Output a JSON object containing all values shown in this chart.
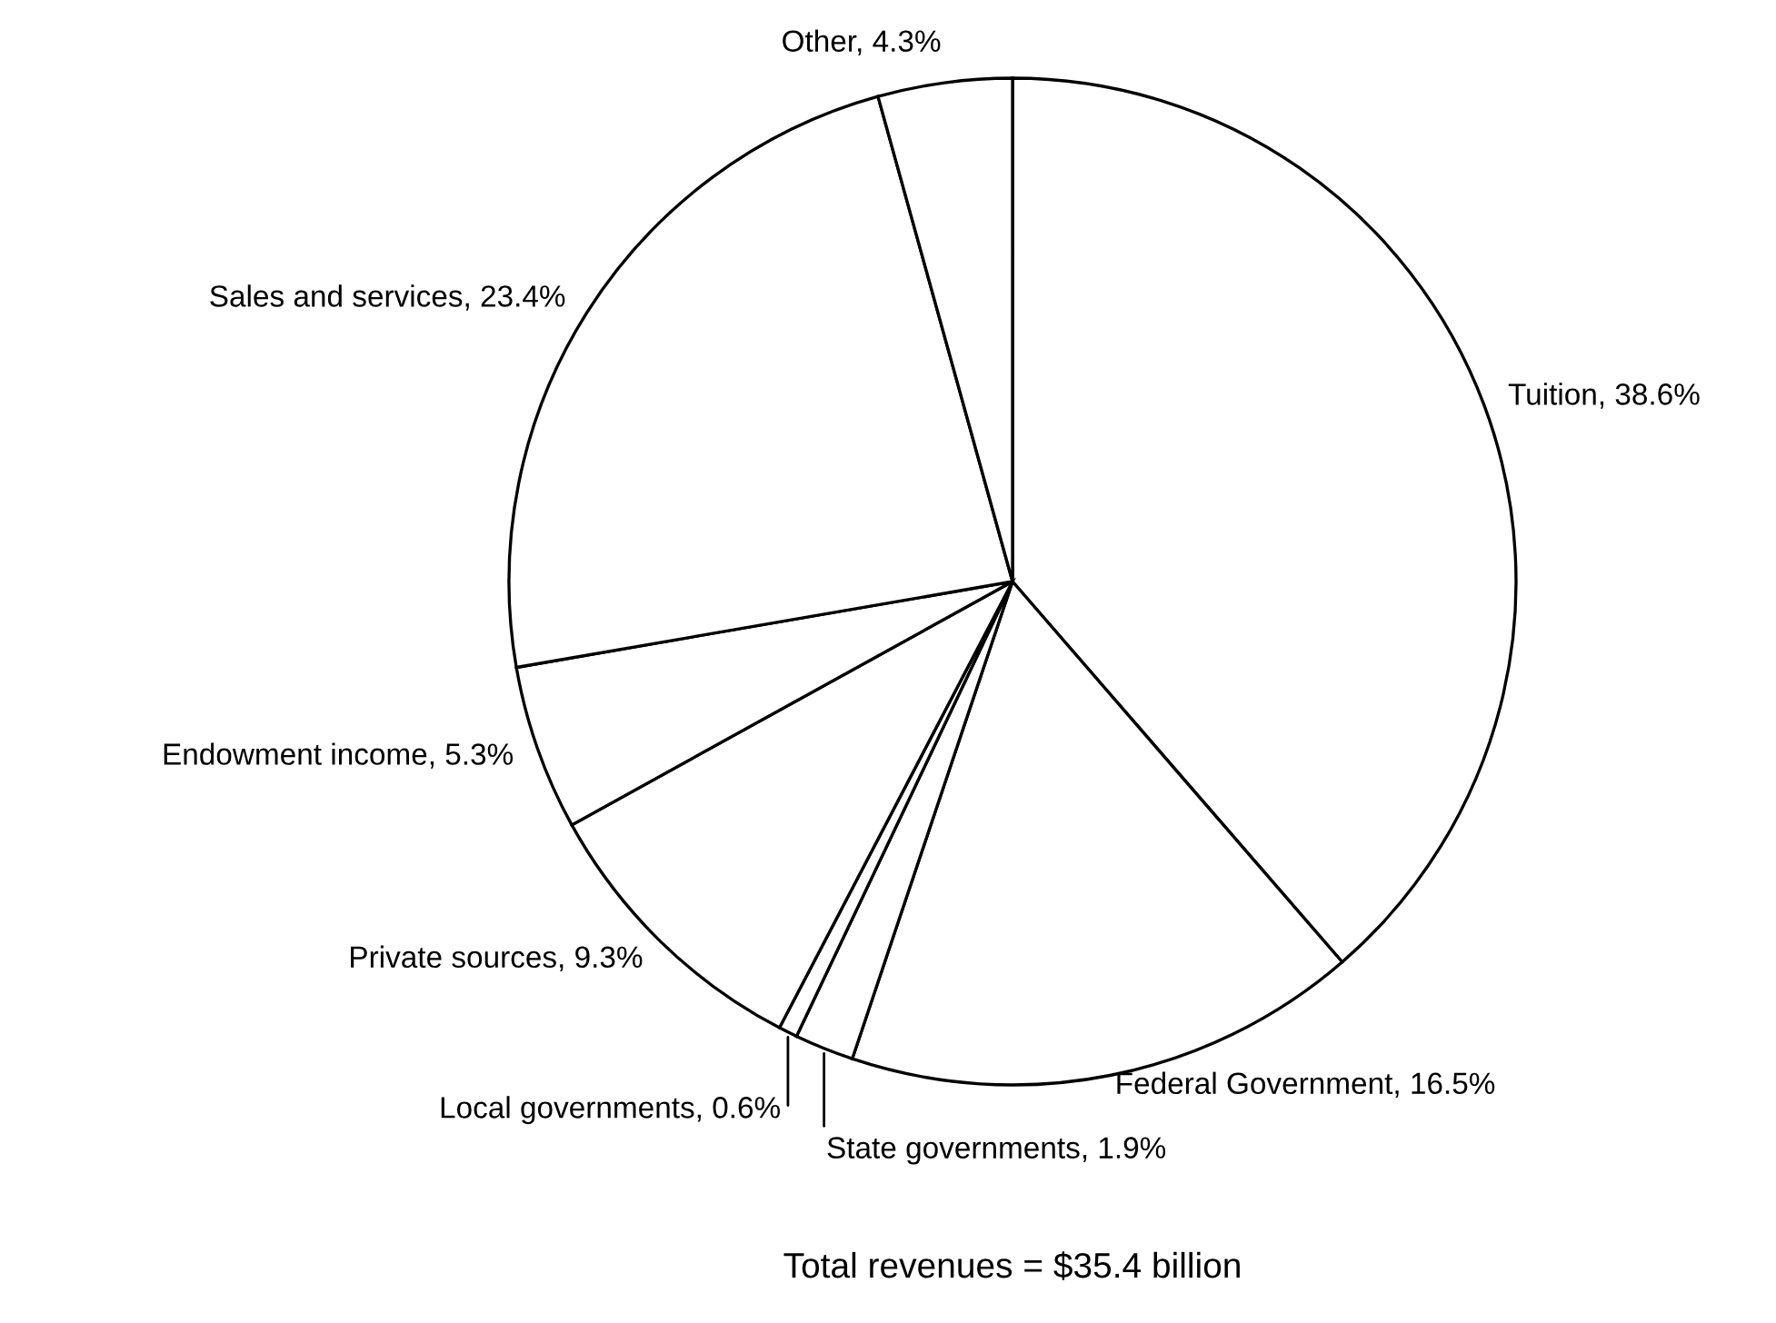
{
  "chart_data": {
    "type": "pie",
    "categories": [
      "Tuition",
      "Federal Government",
      "State governments",
      "Local governments",
      "Private sources",
      "Endowment income",
      "Sales and services",
      "Other"
    ],
    "values": [
      38.6,
      16.5,
      1.9,
      0.6,
      9.3,
      5.3,
      23.4,
      4.3
    ],
    "value_labels": [
      "38.6%",
      "16.5%",
      "1.9%",
      "0.6%",
      "9.3%",
      "5.3%",
      "23.4%",
      "4.3%"
    ],
    "colors": [
      "#ffffff",
      "#ffffff",
      "#ffffff",
      "#ffffff",
      "#ffffff",
      "#ffffff",
      "#ffffff",
      "#ffffff"
    ],
    "annotations": [
      "Total revenues = $35.4 billion"
    ],
    "legend": false
  }
}
